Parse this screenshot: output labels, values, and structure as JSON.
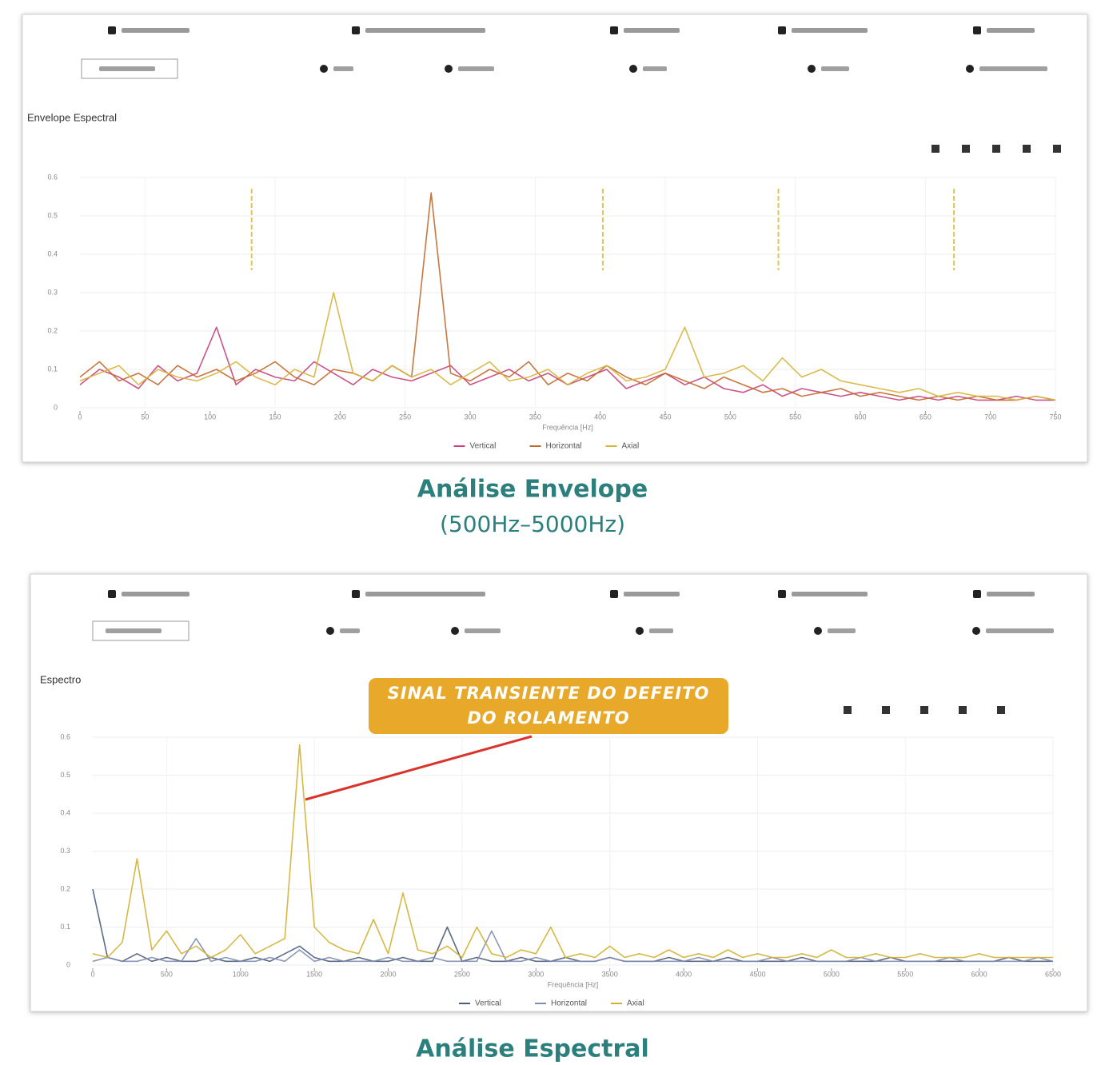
{
  "chart_data": [
    {
      "type": "line",
      "title": "Envelope Espectral",
      "caption": "Análise Envelope",
      "caption_subtitle": "(500Hz–5000Hz)",
      "x_label": "Frequência [Hz]",
      "x": [
        0,
        15,
        30,
        45,
        60,
        75,
        90,
        105,
        120,
        135,
        150,
        165,
        180,
        195,
        210,
        225,
        240,
        255,
        270,
        285,
        300,
        315,
        330,
        345,
        360,
        375,
        390,
        405,
        420,
        435,
        450,
        465,
        480,
        495,
        510,
        525,
        540,
        555,
        570,
        585,
        600,
        615,
        630,
        645,
        660,
        675,
        690,
        705,
        720,
        735,
        750
      ],
      "series": [
        {
          "name": "Vertical",
          "color": "#c9407c",
          "values": [
            0.06,
            0.1,
            0.08,
            0.05,
            0.11,
            0.07,
            0.09,
            0.21,
            0.06,
            0.1,
            0.08,
            0.07,
            0.12,
            0.09,
            0.06,
            0.1,
            0.08,
            0.07,
            0.09,
            0.11,
            0.06,
            0.08,
            0.1,
            0.07,
            0.09,
            0.06,
            0.08,
            0.1,
            0.05,
            0.07,
            0.09,
            0.06,
            0.08,
            0.05,
            0.04,
            0.06,
            0.03,
            0.05,
            0.04,
            0.03,
            0.04,
            0.03,
            0.02,
            0.03,
            0.02,
            0.03,
            0.02,
            0.02,
            0.03,
            0.02,
            0.02
          ]
        },
        {
          "name": "Horizontal",
          "color": "#c2682c",
          "values": [
            0.08,
            0.12,
            0.07,
            0.09,
            0.06,
            0.11,
            0.08,
            0.1,
            0.07,
            0.09,
            0.12,
            0.08,
            0.06,
            0.1,
            0.09,
            0.07,
            0.11,
            0.08,
            0.56,
            0.09,
            0.07,
            0.1,
            0.08,
            0.12,
            0.06,
            0.09,
            0.07,
            0.11,
            0.08,
            0.06,
            0.09,
            0.07,
            0.05,
            0.08,
            0.06,
            0.04,
            0.05,
            0.03,
            0.04,
            0.05,
            0.03,
            0.04,
            0.03,
            0.02,
            0.03,
            0.02,
            0.03,
            0.02,
            0.02,
            0.03,
            0.02
          ]
        },
        {
          "name": "Axial",
          "color": "#d6b43a",
          "values": [
            0.07,
            0.09,
            0.11,
            0.06,
            0.1,
            0.08,
            0.07,
            0.09,
            0.12,
            0.08,
            0.06,
            0.1,
            0.08,
            0.3,
            0.09,
            0.07,
            0.11,
            0.08,
            0.1,
            0.06,
            0.09,
            0.12,
            0.07,
            0.08,
            0.1,
            0.06,
            0.09,
            0.11,
            0.07,
            0.08,
            0.1,
            0.21,
            0.08,
            0.09,
            0.11,
            0.07,
            0.13,
            0.08,
            0.1,
            0.07,
            0.06,
            0.05,
            0.04,
            0.05,
            0.03,
            0.04,
            0.03,
            0.03,
            0.02,
            0.03,
            0.02
          ]
        }
      ],
      "markers": [
        132,
        402,
        537,
        672
      ],
      "marker_color": "#e0c650",
      "xlim": [
        0,
        750
      ],
      "xticks": [
        0,
        50,
        100,
        150,
        200,
        250,
        300,
        350,
        400,
        450,
        500,
        550,
        600,
        650,
        700,
        750
      ],
      "ylim": [
        0,
        0.6
      ],
      "yticks": [
        0,
        0.1,
        0.2,
        0.3,
        0.4,
        0.5,
        0.6
      ],
      "grid": true
    },
    {
      "type": "line",
      "title": "Espectro",
      "caption": "Análise Espectral",
      "x_label": "Frequência [Hz]",
      "annotation": "SINAL TRANSIENTE DO DEFEITO DO ROLAMENTO",
      "annotation_color": "#e8a92b",
      "x": [
        0,
        100,
        200,
        300,
        400,
        500,
        600,
        700,
        800,
        900,
        1000,
        1100,
        1200,
        1300,
        1400,
        1500,
        1600,
        1700,
        1800,
        1900,
        2000,
        2100,
        2200,
        2300,
        2400,
        2500,
        2600,
        2700,
        2800,
        2900,
        3000,
        3100,
        3200,
        3300,
        3400,
        3500,
        3600,
        3700,
        3800,
        3900,
        4000,
        4100,
        4200,
        4300,
        4400,
        4500,
        4600,
        4700,
        4800,
        4900,
        5000,
        5100,
        5200,
        5300,
        5400,
        5500,
        5600,
        5700,
        5800,
        5900,
        6000,
        6100,
        6200,
        6300,
        6400,
        6500
      ],
      "series": [
        {
          "name": "Vertical",
          "color": "#4b5b7c",
          "values": [
            0.2,
            0.02,
            0.01,
            0.03,
            0.01,
            0.02,
            0.01,
            0.01,
            0.02,
            0.01,
            0.01,
            0.02,
            0.01,
            0.03,
            0.05,
            0.02,
            0.01,
            0.01,
            0.02,
            0.01,
            0.01,
            0.02,
            0.01,
            0.01,
            0.1,
            0.01,
            0.02,
            0.01,
            0.01,
            0.02,
            0.01,
            0.01,
            0.02,
            0.01,
            0.01,
            0.02,
            0.01,
            0.01,
            0.01,
            0.02,
            0.01,
            0.01,
            0.01,
            0.02,
            0.01,
            0.01,
            0.01,
            0.01,
            0.02,
            0.01,
            0.01,
            0.01,
            0.01,
            0.01,
            0.02,
            0.01,
            0.01,
            0.01,
            0.01,
            0.01,
            0.01,
            0.01,
            0.02,
            0.01,
            0.01,
            0.01
          ]
        },
        {
          "name": "Horizontal",
          "color": "#7d8db3",
          "values": [
            0.01,
            0.02,
            0.01,
            0.01,
            0.02,
            0.01,
            0.01,
            0.07,
            0.01,
            0.02,
            0.01,
            0.01,
            0.02,
            0.01,
            0.04,
            0.01,
            0.02,
            0.01,
            0.01,
            0.01,
            0.02,
            0.01,
            0.01,
            0.02,
            0.01,
            0.01,
            0.01,
            0.09,
            0.01,
            0.01,
            0.02,
            0.01,
            0.01,
            0.01,
            0.01,
            0.02,
            0.01,
            0.01,
            0.01,
            0.01,
            0.01,
            0.02,
            0.01,
            0.01,
            0.01,
            0.01,
            0.02,
            0.01,
            0.01,
            0.01,
            0.01,
            0.01,
            0.02,
            0.01,
            0.01,
            0.01,
            0.01,
            0.01,
            0.02,
            0.01,
            0.01,
            0.01,
            0.01,
            0.01,
            0.02,
            0.01
          ]
        },
        {
          "name": "Axial",
          "color": "#d4b030",
          "values": [
            0.03,
            0.02,
            0.06,
            0.28,
            0.04,
            0.09,
            0.03,
            0.05,
            0.02,
            0.04,
            0.08,
            0.03,
            0.05,
            0.07,
            0.58,
            0.1,
            0.06,
            0.04,
            0.03,
            0.12,
            0.03,
            0.19,
            0.04,
            0.03,
            0.05,
            0.02,
            0.1,
            0.03,
            0.02,
            0.04,
            0.03,
            0.1,
            0.02,
            0.03,
            0.02,
            0.05,
            0.02,
            0.03,
            0.02,
            0.04,
            0.02,
            0.03,
            0.02,
            0.04,
            0.02,
            0.03,
            0.02,
            0.02,
            0.03,
            0.02,
            0.04,
            0.02,
            0.02,
            0.03,
            0.02,
            0.02,
            0.03,
            0.02,
            0.02,
            0.02,
            0.03,
            0.02,
            0.02,
            0.02,
            0.02,
            0.02
          ]
        }
      ],
      "xlim": [
        0,
        6500
      ],
      "xticks": [
        0,
        500,
        1000,
        1500,
        2000,
        2500,
        3000,
        3500,
        4000,
        4500,
        5000,
        5500,
        6000,
        6500
      ],
      "ylim": [
        0,
        0.6
      ],
      "yticks": [
        0,
        0.1,
        0.2,
        0.3,
        0.4,
        0.5,
        0.6
      ],
      "grid": true
    }
  ]
}
